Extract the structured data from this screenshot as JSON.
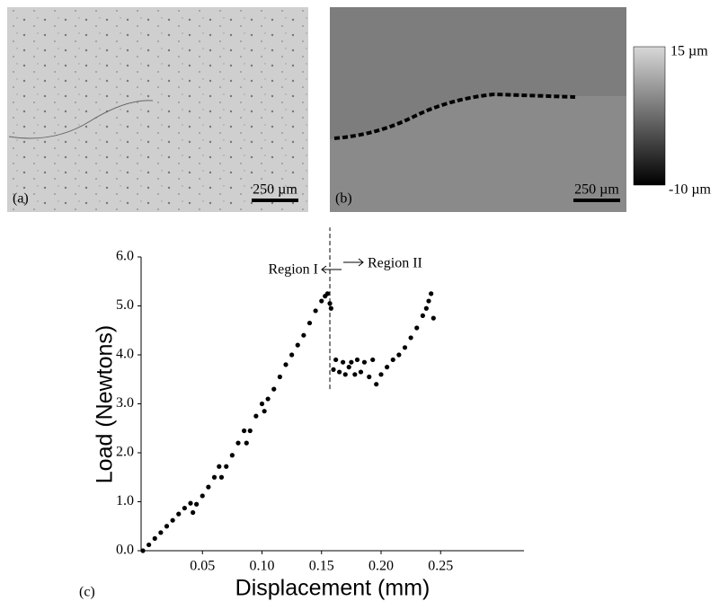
{
  "panels": {
    "a": {
      "label": "(a)",
      "scale_bar": "250 µm"
    },
    "b": {
      "label": "(b)",
      "scale_bar": "250 µm",
      "colorbar_max": "15 µm",
      "colorbar_min": "-10 µm"
    },
    "c": {
      "label": "(c)"
    }
  },
  "chart_data": {
    "type": "scatter",
    "x_label": "Displacement (mm)",
    "y_label": "Load (Newtons)",
    "annotations": [
      "Region I",
      "Region II"
    ],
    "divider_x": 0.157,
    "divider_y": [
      3.3,
      6.6
    ],
    "xlim": [
      0,
      0.32
    ],
    "ylim": [
      0,
      6
    ],
    "xticks": [
      0.05,
      {
        "value": 0.1,
        "label": "0.10"
      },
      0.15,
      {
        "value": 0.2,
        "label": "0.20"
      },
      0.25
    ],
    "yticks": [
      {
        "value": 0,
        "label": "0.0"
      },
      {
        "value": 1,
        "label": "1.0"
      },
      {
        "value": 2,
        "label": "2.0"
      },
      {
        "value": 3,
        "label": "3.0"
      },
      {
        "value": 4,
        "label": "4.0"
      },
      {
        "value": 5,
        "label": "5.0"
      },
      {
        "value": 6,
        "label": "6.0"
      }
    ],
    "series": [
      {
        "color": "#000000",
        "x": [
          0,
          0.005,
          0.01,
          0.015,
          0.02,
          0.025,
          0.03,
          0.035,
          0.04,
          0.042,
          0.045,
          0.05,
          0.055,
          0.06,
          0.064,
          0.066,
          0.07,
          0.075,
          0.08,
          0.085,
          0.087,
          0.09,
          0.095,
          0.1,
          0.102,
          0.105,
          0.11,
          0.115,
          0.12,
          0.125,
          0.13,
          0.135,
          0.14,
          0.145,
          0.15,
          0.153,
          0.155,
          0.157,
          0.158,
          0.16,
          0.162,
          0.165,
          0.168,
          0.17,
          0.173,
          0.175,
          0.178,
          0.18,
          0.183,
          0.186,
          0.19,
          0.193,
          0.196,
          0.2,
          0.205,
          0.21,
          0.215,
          0.22,
          0.225,
          0.23,
          0.235,
          0.238,
          0.24,
          0.242,
          0.244
        ],
        "values": [
          0,
          0.12,
          0.25,
          0.37,
          0.5,
          0.62,
          0.75,
          0.87,
          0.97,
          0.78,
          0.95,
          1.12,
          1.3,
          1.5,
          1.72,
          1.5,
          1.72,
          1.95,
          2.2,
          2.45,
          2.2,
          2.45,
          2.75,
          3.0,
          2.85,
          3.1,
          3.3,
          3.55,
          3.8,
          4.0,
          4.2,
          4.4,
          4.65,
          4.9,
          5.1,
          5.2,
          5.25,
          5.05,
          4.95,
          3.7,
          3.9,
          3.65,
          3.85,
          3.6,
          3.75,
          3.85,
          3.6,
          3.9,
          3.65,
          3.85,
          3.55,
          3.9,
          3.4,
          3.6,
          3.75,
          3.9,
          4.0,
          4.15,
          4.35,
          4.55,
          4.8,
          4.95,
          5.1,
          5.25,
          4.75
        ]
      }
    ]
  }
}
